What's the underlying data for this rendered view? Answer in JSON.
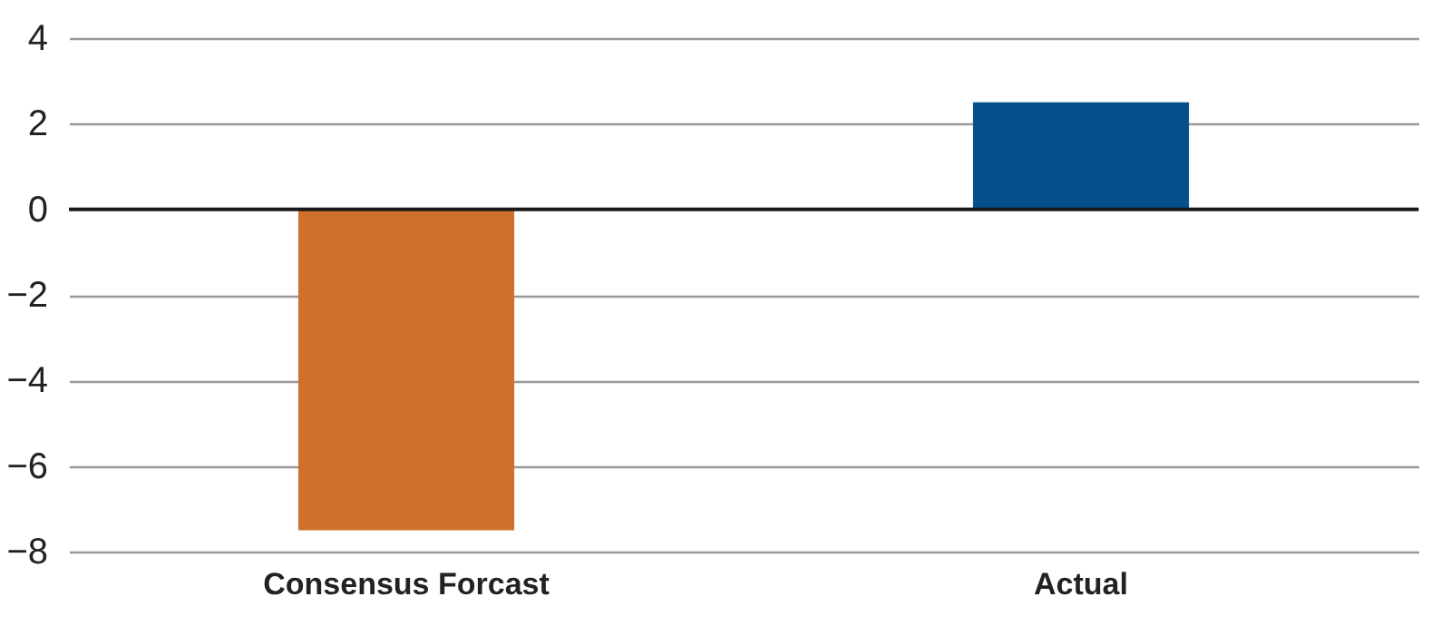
{
  "chart_data": {
    "type": "bar",
    "categories": [
      "Consensus Forcast",
      "Actual"
    ],
    "values": [
      -7.5,
      2.5
    ],
    "colors": [
      "#cf712a",
      "#03508c"
    ],
    "ylim": [
      -8,
      4
    ],
    "yticks": [
      -8,
      -6,
      -4,
      -2,
      0,
      2,
      4
    ],
    "grid": "y",
    "ref_lines": [
      {
        "axis": "y",
        "value": 0,
        "color": "#1a1a1a"
      }
    ]
  }
}
